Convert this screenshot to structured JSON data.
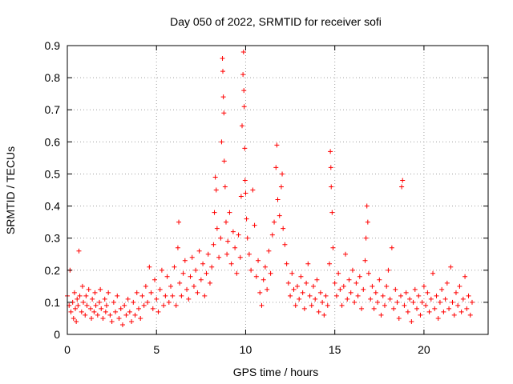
{
  "chart_data": {
    "type": "scatter",
    "title": "Day 050 of 2022, SRMTID for receiver sofi",
    "xlabel": "GPS time / hours",
    "ylabel": "SRMTID / TECUs",
    "xlim": [
      0,
      23.6
    ],
    "ylim": [
      0,
      0.9
    ],
    "xticks": [
      0,
      5,
      10,
      15,
      20
    ],
    "xtick_labels": [
      "0",
      "5",
      "10",
      "15",
      "20"
    ],
    "yticks": [
      0,
      0.1,
      0.2,
      0.3,
      0.4,
      0.5,
      0.6,
      0.7,
      0.8,
      0.9
    ],
    "ytick_labels": [
      "0",
      "0.1",
      "0.2",
      "0.3",
      "0.4",
      "0.5",
      "0.6",
      "0.7",
      "0.8",
      "0.9"
    ],
    "grid": true,
    "marker": "+",
    "color": "#ff0000",
    "series": [
      {
        "name": "SRMTID",
        "points": [
          [
            0.0,
            0.12
          ],
          [
            0.1,
            0.09
          ],
          [
            0.15,
            0.2
          ],
          [
            0.2,
            0.07
          ],
          [
            0.3,
            0.1
          ],
          [
            0.35,
            0.05
          ],
          [
            0.4,
            0.13
          ],
          [
            0.45,
            0.08
          ],
          [
            0.5,
            0.04
          ],
          [
            0.55,
            0.11
          ],
          [
            0.6,
            0.09
          ],
          [
            0.65,
            0.26
          ],
          [
            0.7,
            0.12
          ],
          [
            0.8,
            0.07
          ],
          [
            0.85,
            0.15
          ],
          [
            0.9,
            0.1
          ],
          [
            1.0,
            0.06
          ],
          [
            1.05,
            0.12
          ],
          [
            1.1,
            0.09
          ],
          [
            1.2,
            0.14
          ],
          [
            1.3,
            0.08
          ],
          [
            1.35,
            0.05
          ],
          [
            1.4,
            0.11
          ],
          [
            1.5,
            0.07
          ],
          [
            1.55,
            0.13
          ],
          [
            1.6,
            0.09
          ],
          [
            1.7,
            0.06
          ],
          [
            1.8,
            0.1
          ],
          [
            1.85,
            0.14
          ],
          [
            1.9,
            0.08
          ],
          [
            2.0,
            0.05
          ],
          [
            2.1,
            0.11
          ],
          [
            2.15,
            0.07
          ],
          [
            2.2,
            0.09
          ],
          [
            2.3,
            0.13
          ],
          [
            2.4,
            0.06
          ],
          [
            2.5,
            0.04
          ],
          [
            2.6,
            0.1
          ],
          [
            2.7,
            0.07
          ],
          [
            2.8,
            0.12
          ],
          [
            2.9,
            0.05
          ],
          [
            3.0,
            0.08
          ],
          [
            3.1,
            0.03
          ],
          [
            3.2,
            0.09
          ],
          [
            3.3,
            0.06
          ],
          [
            3.4,
            0.11
          ],
          [
            3.5,
            0.07
          ],
          [
            3.6,
            0.04
          ],
          [
            3.7,
            0.1
          ],
          [
            3.8,
            0.06
          ],
          [
            3.9,
            0.13
          ],
          [
            4.0,
            0.08
          ],
          [
            4.1,
            0.05
          ],
          [
            4.2,
            0.12
          ],
          [
            4.3,
            0.09
          ],
          [
            4.4,
            0.15
          ],
          [
            4.5,
            0.1
          ],
          [
            4.6,
            0.21
          ],
          [
            4.7,
            0.13
          ],
          [
            4.8,
            0.08
          ],
          [
            4.9,
            0.17
          ],
          [
            5.0,
            0.11
          ],
          [
            5.1,
            0.07
          ],
          [
            5.2,
            0.14
          ],
          [
            5.3,
            0.2
          ],
          [
            5.4,
            0.09
          ],
          [
            5.5,
            0.12
          ],
          [
            5.6,
            0.18
          ],
          [
            5.7,
            0.1
          ],
          [
            5.8,
            0.15
          ],
          [
            5.9,
            0.12
          ],
          [
            6.0,
            0.21
          ],
          [
            6.1,
            0.09
          ],
          [
            6.2,
            0.27
          ],
          [
            6.25,
            0.35
          ],
          [
            6.3,
            0.16
          ],
          [
            6.4,
            0.12
          ],
          [
            6.5,
            0.19
          ],
          [
            6.6,
            0.23
          ],
          [
            6.7,
            0.14
          ],
          [
            6.8,
            0.11
          ],
          [
            6.9,
            0.18
          ],
          [
            7.0,
            0.24
          ],
          [
            7.1,
            0.15
          ],
          [
            7.2,
            0.2
          ],
          [
            7.3,
            0.13
          ],
          [
            7.4,
            0.26
          ],
          [
            7.5,
            0.17
          ],
          [
            7.6,
            0.22
          ],
          [
            7.7,
            0.12
          ],
          [
            7.8,
            0.19
          ],
          [
            7.9,
            0.25
          ],
          [
            8.0,
            0.16
          ],
          [
            8.1,
            0.21
          ],
          [
            8.2,
            0.28
          ],
          [
            8.25,
            0.38
          ],
          [
            8.3,
            0.49
          ],
          [
            8.35,
            0.45
          ],
          [
            8.4,
            0.33
          ],
          [
            8.5,
            0.24
          ],
          [
            8.6,
            0.3
          ],
          [
            8.65,
            0.6
          ],
          [
            8.7,
            0.86
          ],
          [
            8.72,
            0.82
          ],
          [
            8.75,
            0.74
          ],
          [
            8.78,
            0.69
          ],
          [
            8.8,
            0.54
          ],
          [
            8.85,
            0.46
          ],
          [
            8.9,
            0.35
          ],
          [
            8.95,
            0.25
          ],
          [
            9.0,
            0.29
          ],
          [
            9.1,
            0.38
          ],
          [
            9.2,
            0.22
          ],
          [
            9.3,
            0.32
          ],
          [
            9.4,
            0.27
          ],
          [
            9.5,
            0.19
          ],
          [
            9.6,
            0.31
          ],
          [
            9.7,
            0.24
          ],
          [
            9.75,
            0.43
          ],
          [
            9.8,
            0.65
          ],
          [
            9.85,
            0.81
          ],
          [
            9.88,
            0.88
          ],
          [
            9.9,
            0.76
          ],
          [
            9.92,
            0.71
          ],
          [
            9.95,
            0.58
          ],
          [
            9.97,
            0.48
          ],
          [
            10.0,
            0.44
          ],
          [
            10.05,
            0.36
          ],
          [
            10.1,
            0.3
          ],
          [
            10.2,
            0.25
          ],
          [
            10.3,
            0.2
          ],
          [
            10.4,
            0.45
          ],
          [
            10.5,
            0.34
          ],
          [
            10.6,
            0.18
          ],
          [
            10.7,
            0.23
          ],
          [
            10.8,
            0.13
          ],
          [
            10.9,
            0.09
          ],
          [
            11.0,
            0.17
          ],
          [
            11.1,
            0.21
          ],
          [
            11.2,
            0.14
          ],
          [
            11.3,
            0.26
          ],
          [
            11.4,
            0.19
          ],
          [
            11.5,
            0.31
          ],
          [
            11.6,
            0.35
          ],
          [
            11.7,
            0.52
          ],
          [
            11.75,
            0.59
          ],
          [
            11.8,
            0.42
          ],
          [
            11.9,
            0.37
          ],
          [
            12.0,
            0.46
          ],
          [
            12.05,
            0.5
          ],
          [
            12.1,
            0.33
          ],
          [
            12.2,
            0.28
          ],
          [
            12.3,
            0.22
          ],
          [
            12.4,
            0.16
          ],
          [
            12.5,
            0.12
          ],
          [
            12.6,
            0.19
          ],
          [
            12.7,
            0.14
          ],
          [
            12.8,
            0.09
          ],
          [
            12.9,
            0.15
          ],
          [
            13.0,
            0.11
          ],
          [
            13.1,
            0.18
          ],
          [
            13.2,
            0.13
          ],
          [
            13.3,
            0.08
          ],
          [
            13.4,
            0.16
          ],
          [
            13.5,
            0.22
          ],
          [
            13.6,
            0.12
          ],
          [
            13.7,
            0.09
          ],
          [
            13.8,
            0.15
          ],
          [
            13.9,
            0.11
          ],
          [
            14.0,
            0.17
          ],
          [
            14.1,
            0.07
          ],
          [
            14.2,
            0.13
          ],
          [
            14.3,
            0.1
          ],
          [
            14.4,
            0.06
          ],
          [
            14.5,
            0.12
          ],
          [
            14.6,
            0.09
          ],
          [
            14.7,
            0.22
          ],
          [
            14.75,
            0.57
          ],
          [
            14.78,
            0.52
          ],
          [
            14.8,
            0.46
          ],
          [
            14.85,
            0.38
          ],
          [
            14.9,
            0.27
          ],
          [
            15.0,
            0.16
          ],
          [
            15.1,
            0.12
          ],
          [
            15.2,
            0.19
          ],
          [
            15.3,
            0.14
          ],
          [
            15.4,
            0.09
          ],
          [
            15.5,
            0.15
          ],
          [
            15.6,
            0.25
          ],
          [
            15.7,
            0.11
          ],
          [
            15.8,
            0.17
          ],
          [
            15.9,
            0.13
          ],
          [
            16.0,
            0.2
          ],
          [
            16.1,
            0.1
          ],
          [
            16.2,
            0.16
          ],
          [
            16.3,
            0.12
          ],
          [
            16.4,
            0.18
          ],
          [
            16.5,
            0.08
          ],
          [
            16.6,
            0.14
          ],
          [
            16.7,
            0.23
          ],
          [
            16.75,
            0.3
          ],
          [
            16.8,
            0.4
          ],
          [
            16.85,
            0.35
          ],
          [
            16.9,
            0.19
          ],
          [
            17.0,
            0.11
          ],
          [
            17.1,
            0.15
          ],
          [
            17.2,
            0.08
          ],
          [
            17.3,
            0.13
          ],
          [
            17.4,
            0.1
          ],
          [
            17.5,
            0.17
          ],
          [
            17.6,
            0.06
          ],
          [
            17.7,
            0.12
          ],
          [
            17.8,
            0.09
          ],
          [
            17.9,
            0.15
          ],
          [
            18.0,
            0.2
          ],
          [
            18.1,
            0.11
          ],
          [
            18.2,
            0.27
          ],
          [
            18.3,
            0.08
          ],
          [
            18.4,
            0.14
          ],
          [
            18.5,
            0.1
          ],
          [
            18.6,
            0.05
          ],
          [
            18.7,
            0.12
          ],
          [
            18.75,
            0.46
          ],
          [
            18.8,
            0.48
          ],
          [
            18.9,
            0.09
          ],
          [
            19.0,
            0.13
          ],
          [
            19.1,
            0.07
          ],
          [
            19.2,
            0.11
          ],
          [
            19.3,
            0.04
          ],
          [
            19.4,
            0.1
          ],
          [
            19.5,
            0.14
          ],
          [
            19.6,
            0.08
          ],
          [
            19.7,
            0.12
          ],
          [
            19.8,
            0.06
          ],
          [
            19.9,
            0.1
          ],
          [
            20.0,
            0.15
          ],
          [
            20.1,
            0.09
          ],
          [
            20.2,
            0.13
          ],
          [
            20.3,
            0.07
          ],
          [
            20.4,
            0.11
          ],
          [
            20.5,
            0.19
          ],
          [
            20.6,
            0.08
          ],
          [
            20.7,
            0.12
          ],
          [
            20.8,
            0.05
          ],
          [
            20.9,
            0.1
          ],
          [
            21.0,
            0.14
          ],
          [
            21.1,
            0.07
          ],
          [
            21.2,
            0.11
          ],
          [
            21.3,
            0.16
          ],
          [
            21.4,
            0.08
          ],
          [
            21.5,
            0.21
          ],
          [
            21.6,
            0.1
          ],
          [
            21.7,
            0.06
          ],
          [
            21.8,
            0.13
          ],
          [
            21.9,
            0.09
          ],
          [
            22.0,
            0.15
          ],
          [
            22.1,
            0.07
          ],
          [
            22.2,
            0.11
          ],
          [
            22.3,
            0.18
          ],
          [
            22.4,
            0.08
          ],
          [
            22.5,
            0.12
          ],
          [
            22.6,
            0.06
          ],
          [
            22.7,
            0.1
          ]
        ]
      }
    ]
  }
}
